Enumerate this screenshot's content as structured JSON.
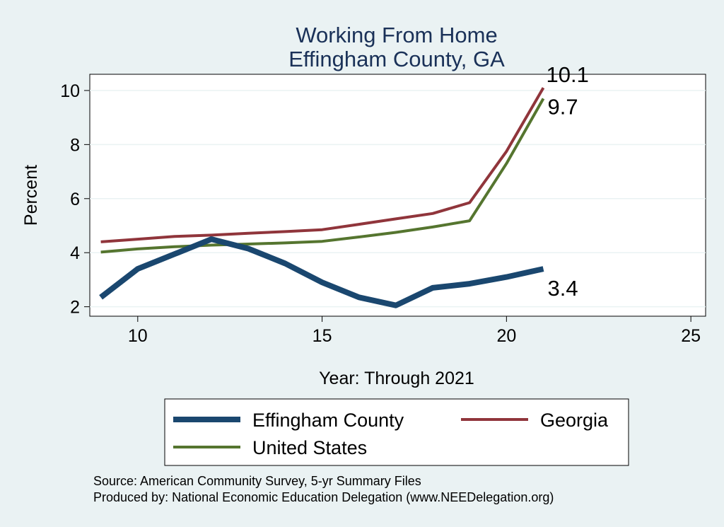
{
  "chart_data": {
    "type": "line",
    "title": [
      "Working From Home",
      "Effingham County, GA"
    ],
    "xlabel": "Year: Through 2021",
    "ylabel": "Percent",
    "xlim": [
      8.7,
      25.4
    ],
    "ylim": [
      1.65,
      10.6
    ],
    "xticks": [
      10,
      15,
      20,
      25
    ],
    "yticks": [
      2,
      4,
      6,
      8,
      10
    ],
    "grid": "horizontal",
    "legend_position": "bottom",
    "series": [
      {
        "name": "Effingham County",
        "color": "#1a476f",
        "x": [
          9,
          10,
          11,
          12,
          13,
          14,
          15,
          16,
          17,
          18,
          19,
          20,
          21
        ],
        "y": [
          2.35,
          3.4,
          3.95,
          4.5,
          4.15,
          3.6,
          2.9,
          2.35,
          2.05,
          2.7,
          2.85,
          3.1,
          3.4
        ],
        "end_label": "3.4"
      },
      {
        "name": "Georgia",
        "color": "#90353b",
        "x": [
          9,
          10,
          11,
          12,
          13,
          14,
          15,
          16,
          17,
          18,
          19,
          20,
          21
        ],
        "y": [
          4.4,
          4.5,
          4.6,
          4.65,
          4.72,
          4.78,
          4.85,
          5.05,
          5.25,
          5.45,
          5.85,
          7.75,
          10.1
        ],
        "end_label": "10.1"
      },
      {
        "name": "United States",
        "color": "#55752f",
        "x": [
          9,
          10,
          11,
          12,
          13,
          14,
          15,
          16,
          17,
          18,
          19,
          20,
          21
        ],
        "y": [
          4.02,
          4.14,
          4.22,
          4.28,
          4.32,
          4.36,
          4.42,
          4.58,
          4.75,
          4.95,
          5.18,
          7.3,
          9.7
        ],
        "end_label": "9.7"
      }
    ],
    "notes": [
      "Source: American Community Survey, 5-yr Summary Files",
      "Produced by: National Economic Education Delegation (www.NEEDelegation.org)"
    ]
  }
}
